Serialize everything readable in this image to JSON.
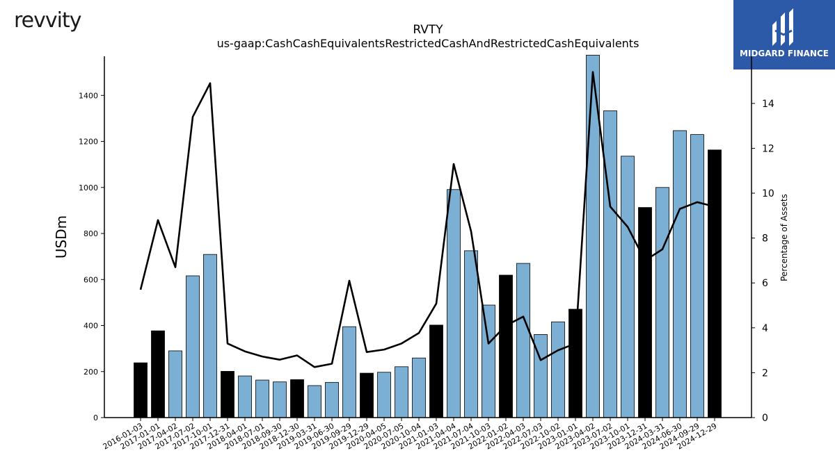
{
  "brand": {
    "left_logo_text": "revvity",
    "right_logo_text": "MIDGARD FINANCE"
  },
  "colors": {
    "highlight_bar": "#000000",
    "normal_bar": "#7bafd4",
    "line": "#000000",
    "logo_bg": "#2c5aa8"
  },
  "chart_data": {
    "type": "bar",
    "title": "RVTY",
    "subtitle": "us-gaap:CashCashEquivalentsRestrictedCashAndRestrictedCashEquivalents",
    "ylabel": "USDm",
    "y2label": "Percentage of Assets",
    "ylim": [
      0,
      1570
    ],
    "y2lim": [
      0,
      16.1
    ],
    "yticks": [
      0,
      200,
      400,
      600,
      800,
      1000,
      1200,
      1400
    ],
    "y2ticks": [
      0,
      2,
      4,
      6,
      8,
      10,
      12,
      14
    ],
    "categories": [
      "2016-01-03",
      "2017-01-01",
      "2017-04-02",
      "2017-07-02",
      "2017-10-01",
      "2017-12-31",
      "2018-04-01",
      "2018-07-01",
      "2018-09-30",
      "2018-12-30",
      "2019-03-31",
      "2019-06-30",
      "2019-09-29",
      "2019-12-29",
      "2020-04-05",
      "2020-07-05",
      "2020-10-04",
      "2021-01-03",
      "2021-04-04",
      "2021-07-04",
      "2021-10-03",
      "2022-01-02",
      "2022-04-03",
      "2022-07-03",
      "2022-10-02",
      "2023-01-01",
      "2023-04-02",
      "2023-07-02",
      "2023-10-01",
      "2023-12-31",
      "2024-03-31",
      "2024-06-30",
      "2024-09-29",
      "2024-12-29"
    ],
    "series": [
      {
        "type": "bar",
        "values": [
          238,
          377,
          290,
          616,
          709,
          201,
          181,
          163,
          155,
          165,
          139,
          153,
          395,
          193,
          197,
          221,
          259,
          402,
          991,
          725,
          489,
          619,
          670,
          361,
          416,
          471,
          1575,
          1333,
          1136,
          913,
          1000,
          1247,
          1230,
          1163
        ],
        "highlight": [
          true,
          true,
          false,
          false,
          false,
          true,
          false,
          false,
          false,
          true,
          false,
          false,
          false,
          true,
          false,
          false,
          false,
          true,
          false,
          false,
          false,
          true,
          false,
          false,
          false,
          true,
          false,
          false,
          false,
          true,
          false,
          false,
          false,
          true
        ]
      },
      {
        "type": "line",
        "axis": "right",
        "values": [
          5.7,
          8.8,
          6.7,
          13.4,
          14.9,
          3.3,
          2.95,
          2.72,
          2.58,
          2.77,
          2.25,
          2.4,
          6.1,
          2.92,
          3.03,
          3.3,
          3.77,
          5.08,
          11.3,
          8.3,
          3.3,
          4.1,
          4.5,
          2.56,
          3.0,
          3.3,
          15.4,
          9.4,
          8.5,
          7.0,
          7.5,
          9.3,
          9.6,
          9.4
        ]
      }
    ]
  }
}
